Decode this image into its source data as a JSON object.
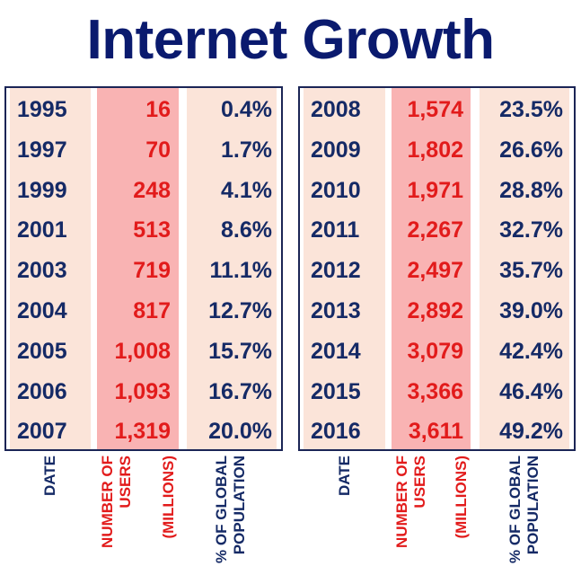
{
  "title": "Internet Growth",
  "chart_data": {
    "type": "table",
    "title": "Internet Growth",
    "columns": [
      "DATE",
      "NUMBER OF USERS (MILLIONS)",
      "% OF GLOBAL POPULATION"
    ],
    "rows": [
      {
        "date": "1995",
        "users": "16",
        "pct": "0.4%"
      },
      {
        "date": "1997",
        "users": "70",
        "pct": "1.7%"
      },
      {
        "date": "1999",
        "users": "248",
        "pct": "4.1%"
      },
      {
        "date": "2001",
        "users": "513",
        "pct": "8.6%"
      },
      {
        "date": "2003",
        "users": "719",
        "pct": "11.1%"
      },
      {
        "date": "2004",
        "users": "817",
        "pct": "12.7%"
      },
      {
        "date": "2005",
        "users": "1,008",
        "pct": "15.7%"
      },
      {
        "date": "2006",
        "users": "1,093",
        "pct": "16.7%"
      },
      {
        "date": "2007",
        "users": "1,319",
        "pct": "20.0%"
      },
      {
        "date": "2008",
        "users": "1,574",
        "pct": "23.5%"
      },
      {
        "date": "2009",
        "users": "1,802",
        "pct": "26.6%"
      },
      {
        "date": "2010",
        "users": "1,971",
        "pct": "28.8%"
      },
      {
        "date": "2011",
        "users": "2,267",
        "pct": "32.7%"
      },
      {
        "date": "2012",
        "users": "2,497",
        "pct": "35.7%"
      },
      {
        "date": "2013",
        "users": "2,892",
        "pct": "39.0%"
      },
      {
        "date": "2014",
        "users": "3,079",
        "pct": "42.4%"
      },
      {
        "date": "2015",
        "users": "3,366",
        "pct": "46.4%"
      },
      {
        "date": "2016",
        "users": "3,611",
        "pct": "49.2%"
      }
    ]
  },
  "headers": {
    "date": "DATE",
    "users_line1": "NUMBER OF",
    "users_line2": "USERS",
    "users_line3": "(MILLIONS)",
    "pct_line1": "% OF GLOBAL",
    "pct_line2": "POPULATION"
  },
  "colors": {
    "title": "#0a1a6e",
    "navy_text": "#152a66",
    "red_text": "#e21b1b",
    "peach_band": "#fbe4d9",
    "pink_band": "#f9b3b3",
    "border": "#1b2556"
  }
}
